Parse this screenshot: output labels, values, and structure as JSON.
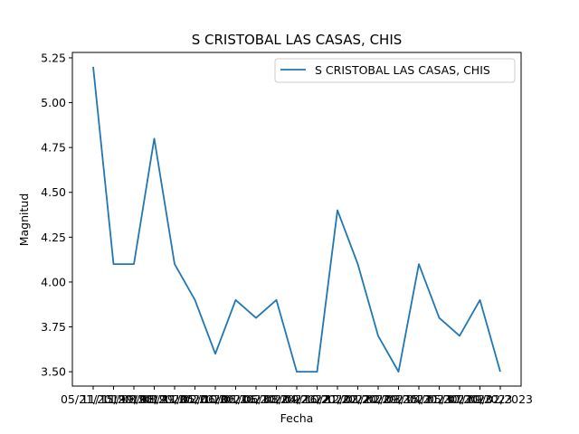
{
  "chart_data": {
    "type": "line",
    "title": "S CRISTOBAL LAS CASAS, CHIS",
    "xlabel": "Fecha",
    "ylabel": "Magnitud",
    "x": [
      "05/21/2019",
      "11/15/2019",
      "11/19/2019",
      "08/08/2020",
      "08/29/2020",
      "11/05/2020",
      "02/06/2021",
      "10/06/2021",
      "01/06/2022",
      "06/30/2022",
      "08/04/2022",
      "09/16/2022",
      "10/21/2022",
      "12/02/2022",
      "01/20/2023",
      "02/09/2023",
      "03/15/2023",
      "04/21/2023",
      "05/30/2023",
      "07/20/2023",
      "09/02/2023"
    ],
    "series": [
      {
        "name": "S CRISTOBAL LAS CASAS, CHIS",
        "color": "#1f77b4",
        "values": [
          5.2,
          4.1,
          4.1,
          4.8,
          4.1,
          3.9,
          3.6,
          3.9,
          3.8,
          3.9,
          3.5,
          3.5,
          4.4,
          4.1,
          3.7,
          3.5,
          4.1,
          3.8,
          3.7,
          3.9,
          3.5
        ]
      }
    ],
    "ylim": [
      3.42,
      5.28
    ],
    "yticks": [
      "3.50",
      "3.75",
      "4.00",
      "4.25",
      "4.50",
      "4.75",
      "5.00",
      "5.25"
    ],
    "legend": "upper-right",
    "grid": false
  }
}
